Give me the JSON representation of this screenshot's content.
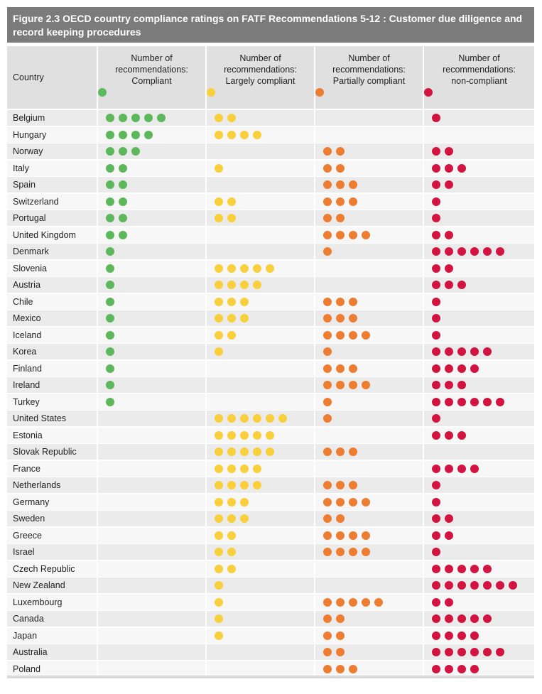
{
  "figure": {
    "number": "Figure 2.3",
    "title": "OECD country compliance ratings on FATF Recommendations 5-12 : Customer due diligence and record keeping procedures"
  },
  "header": {
    "country_label": "Country",
    "columns": [
      {
        "line1": "Number of",
        "line2": "recommendations:",
        "line3": "Compliant"
      },
      {
        "line1": "Number of",
        "line2": "recommendations:",
        "line3": "Largely compliant"
      },
      {
        "line1": "Number of",
        "line2": "recommendations:",
        "line3": "Partially compliant"
      },
      {
        "line1": "Number of",
        "line2": "recommendations:",
        "line3": "non-compliant"
      }
    ]
  },
  "colors": {
    "compliant": "#5cb85a",
    "largely_compliant": "#f9cf3c",
    "partially_compliant": "#ee7d31",
    "non_compliant": "#d31340",
    "title_bg": "#7b7b7b",
    "header_bg": "#e0e0e0"
  },
  "chart_data": {
    "type": "table",
    "columns": [
      "Compliant",
      "Largely compliant",
      "Partially compliant",
      "non-compliant"
    ],
    "rows": [
      {
        "country": "Belgium",
        "counts": [
          5,
          2,
          0,
          1
        ]
      },
      {
        "country": "Hungary",
        "counts": [
          4,
          4,
          0,
          0
        ]
      },
      {
        "country": "Norway",
        "counts": [
          3,
          0,
          2,
          2
        ]
      },
      {
        "country": "Italy",
        "counts": [
          2,
          1,
          2,
          3
        ]
      },
      {
        "country": "Spain",
        "counts": [
          2,
          0,
          3,
          2
        ]
      },
      {
        "country": "Switzerland",
        "counts": [
          2,
          2,
          3,
          1
        ]
      },
      {
        "country": "Portugal",
        "counts": [
          2,
          2,
          2,
          1
        ]
      },
      {
        "country": "United Kingdom",
        "counts": [
          2,
          0,
          4,
          2
        ]
      },
      {
        "country": "Denmark",
        "counts": [
          1,
          0,
          1,
          6
        ]
      },
      {
        "country": "Slovenia",
        "counts": [
          1,
          5,
          0,
          2
        ]
      },
      {
        "country": "Austria",
        "counts": [
          1,
          4,
          0,
          3
        ]
      },
      {
        "country": "Chile",
        "counts": [
          1,
          3,
          3,
          1
        ]
      },
      {
        "country": "Mexico",
        "counts": [
          1,
          3,
          3,
          1
        ]
      },
      {
        "country": "Iceland",
        "counts": [
          1,
          2,
          4,
          1
        ]
      },
      {
        "country": "Korea",
        "counts": [
          1,
          1,
          1,
          5
        ]
      },
      {
        "country": "Finland",
        "counts": [
          1,
          0,
          3,
          4
        ]
      },
      {
        "country": "Ireland",
        "counts": [
          1,
          0,
          4,
          3
        ]
      },
      {
        "country": "Turkey",
        "counts": [
          1,
          0,
          1,
          6
        ]
      },
      {
        "country": "United States",
        "counts": [
          0,
          6,
          1,
          1
        ]
      },
      {
        "country": "Estonia",
        "counts": [
          0,
          5,
          0,
          3
        ]
      },
      {
        "country": "Slovak Republic",
        "counts": [
          0,
          5,
          3,
          0
        ]
      },
      {
        "country": "France",
        "counts": [
          0,
          4,
          0,
          4
        ]
      },
      {
        "country": "Netherlands",
        "counts": [
          0,
          4,
          3,
          1
        ]
      },
      {
        "country": "Germany",
        "counts": [
          0,
          3,
          4,
          1
        ]
      },
      {
        "country": "Sweden",
        "counts": [
          0,
          3,
          2,
          2
        ]
      },
      {
        "country": "Greece",
        "counts": [
          0,
          2,
          4,
          2
        ]
      },
      {
        "country": "Israel",
        "counts": [
          0,
          2,
          4,
          1
        ]
      },
      {
        "country": "Czech Republic",
        "counts": [
          0,
          2,
          0,
          5
        ]
      },
      {
        "country": "New Zealand",
        "counts": [
          0,
          1,
          0,
          7
        ]
      },
      {
        "country": "Luxembourg",
        "counts": [
          0,
          1,
          5,
          2
        ]
      },
      {
        "country": "Canada",
        "counts": [
          0,
          1,
          2,
          5
        ]
      },
      {
        "country": "Japan",
        "counts": [
          0,
          1,
          2,
          4
        ]
      },
      {
        "country": "Australia",
        "counts": [
          0,
          0,
          2,
          6
        ]
      },
      {
        "country": "Poland",
        "counts": [
          0,
          0,
          3,
          4
        ]
      }
    ]
  }
}
